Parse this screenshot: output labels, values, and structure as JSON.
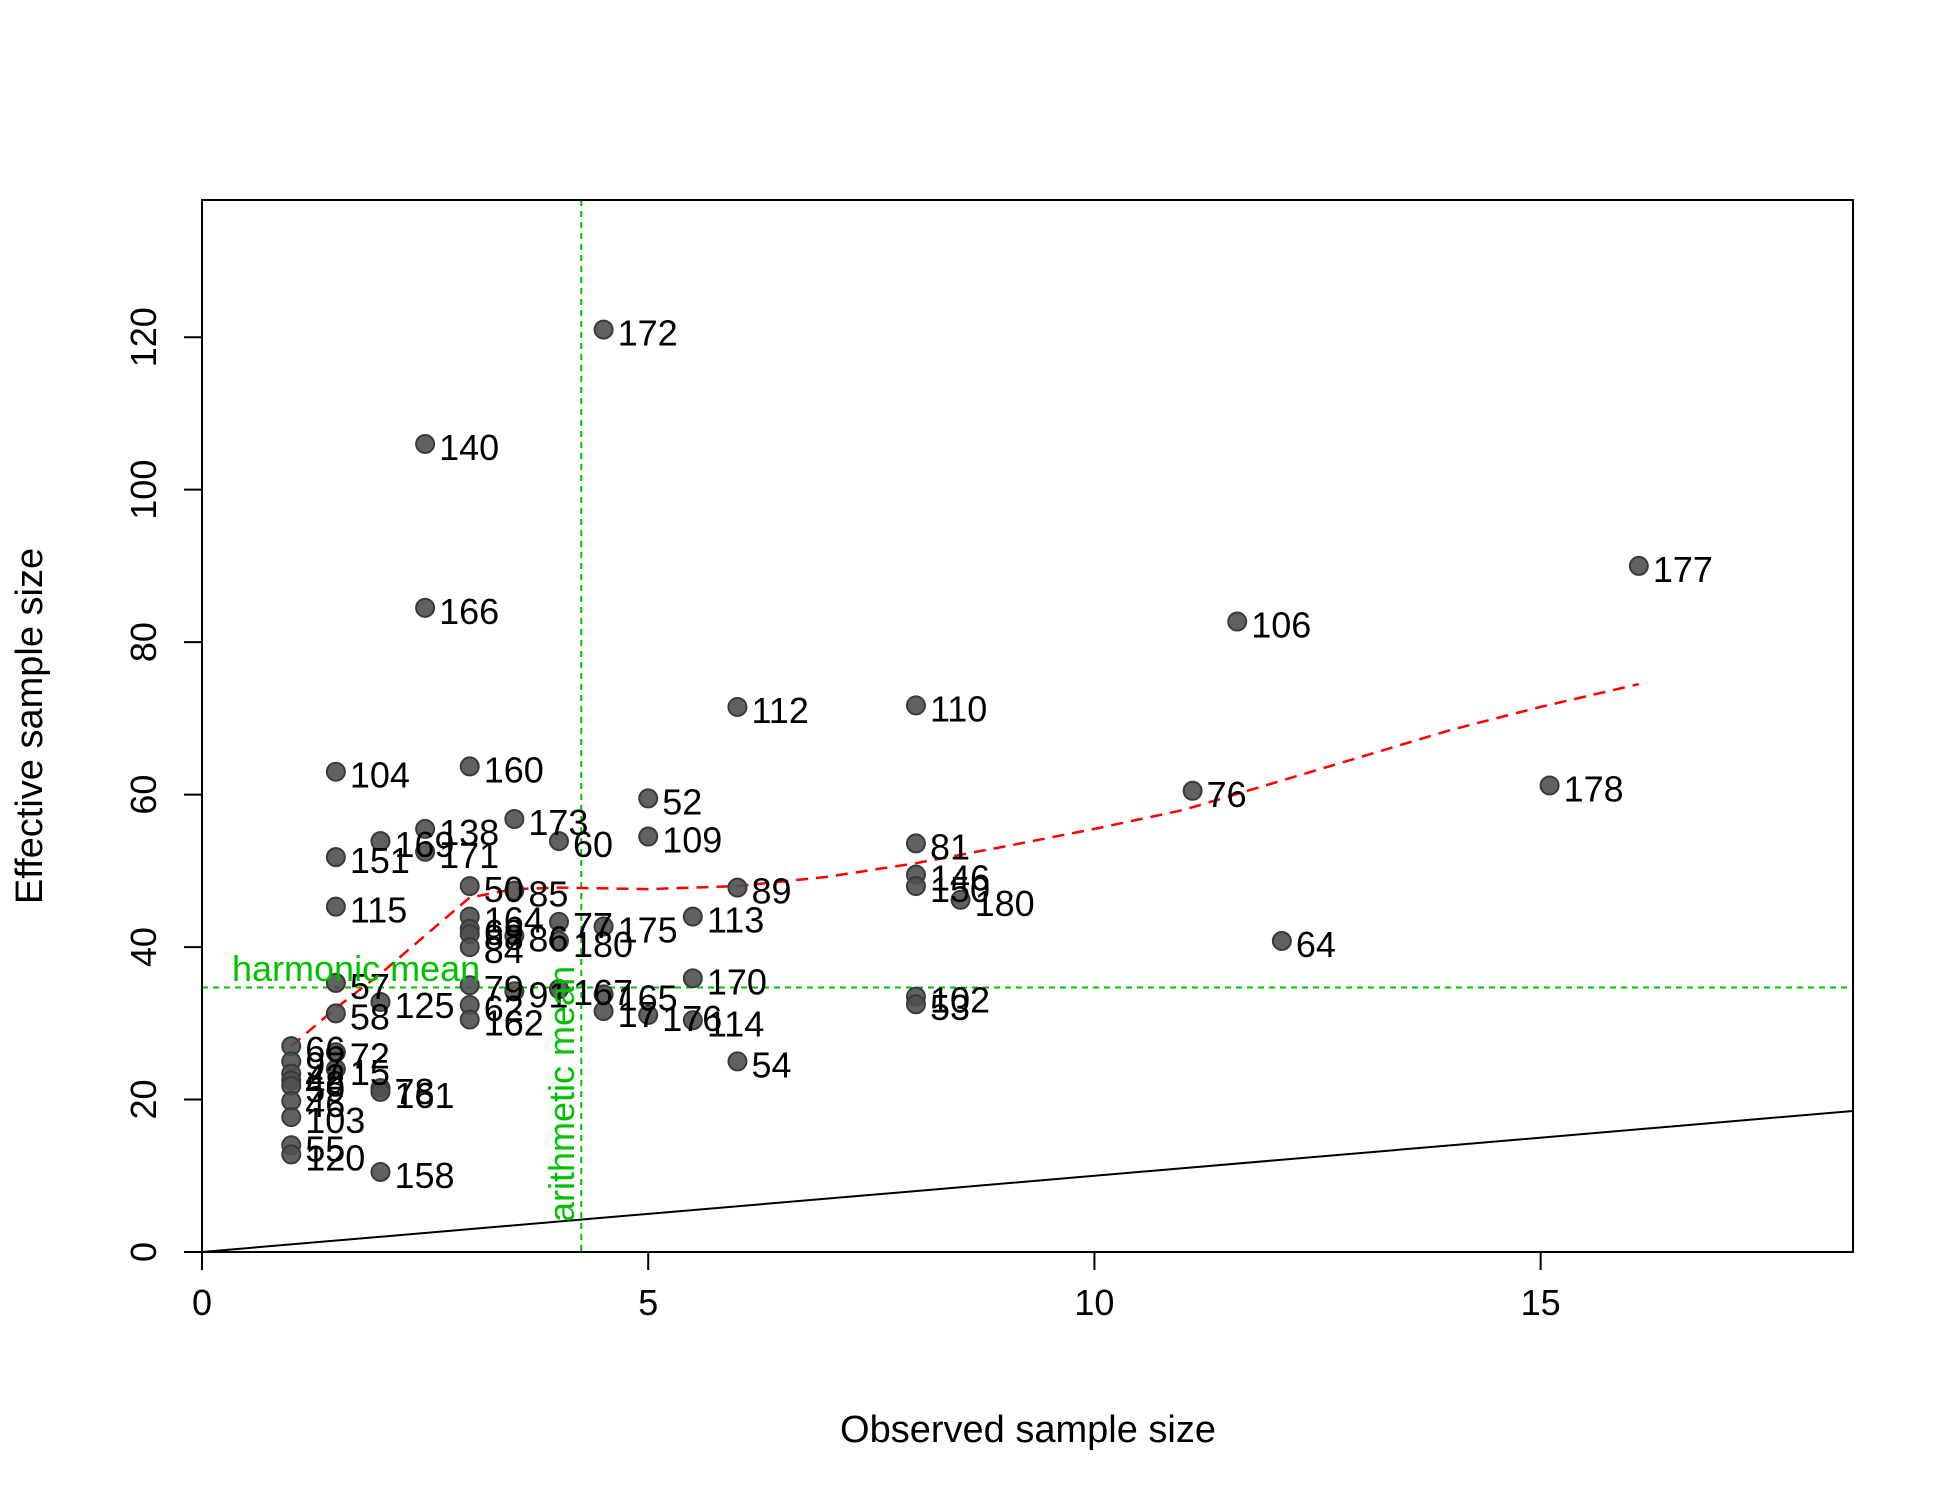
{
  "chart_data": {
    "type": "scatter",
    "title": "",
    "xlabel": "Observed sample size",
    "ylabel": "Effective sample size",
    "xlim": [
      0,
      18.5
    ],
    "ylim": [
      0,
      138
    ],
    "x_ticks": [
      0,
      5,
      10,
      15
    ],
    "y_ticks": [
      0,
      20,
      40,
      60,
      80,
      100,
      120
    ],
    "grid": false,
    "colors": {
      "points": "#3a3a3a",
      "point_fill": "#505050",
      "smooth": "#ff0000",
      "reference": "#00c000",
      "identity": "#000000"
    },
    "points": [
      {
        "label": "172",
        "x": 4.5,
        "y": 121
      },
      {
        "label": "140",
        "x": 2.5,
        "y": 106
      },
      {
        "label": "166",
        "x": 2.5,
        "y": 84.5
      },
      {
        "label": "177",
        "x": 16.1,
        "y": 90
      },
      {
        "label": "106",
        "x": 11.6,
        "y": 82.7
      },
      {
        "label": "112",
        "x": 6,
        "y": 71.5
      },
      {
        "label": "110",
        "x": 8,
        "y": 71.7
      },
      {
        "label": "104",
        "x": 1.5,
        "y": 63
      },
      {
        "label": "160",
        "x": 3,
        "y": 63.7
      },
      {
        "label": "52",
        "x": 5,
        "y": 59.5
      },
      {
        "label": "76",
        "x": 11.1,
        "y": 60.5
      },
      {
        "label": "178",
        "x": 15.1,
        "y": 61.2
      },
      {
        "label": "173",
        "x": 3.5,
        "y": 56.8
      },
      {
        "label": "138",
        "x": 2.5,
        "y": 55.5
      },
      {
        "label": "169",
        "x": 2,
        "y": 53.9
      },
      {
        "label": "171",
        "x": 2.5,
        "y": 52.5
      },
      {
        "label": "60",
        "x": 4,
        "y": 53.9
      },
      {
        "label": "109",
        "x": 5,
        "y": 54.5
      },
      {
        "label": "81",
        "x": 8,
        "y": 53.6
      },
      {
        "label": "151",
        "x": 1.5,
        "y": 51.8
      },
      {
        "label": "146",
        "x": 8,
        "y": 49.5
      },
      {
        "label": "150",
        "x": 8,
        "y": 48
      },
      {
        "label": "89",
        "x": 6,
        "y": 47.8
      },
      {
        "label": "50",
        "x": 3,
        "y": 48
      },
      {
        "label": "85",
        "x": 3.5,
        "y": 47.4
      },
      {
        "label": "180",
        "x": 8.5,
        "y": 46.2
      },
      {
        "label": "115",
        "x": 1.5,
        "y": 45.3
      },
      {
        "label": "113",
        "x": 5.5,
        "y": 44
      },
      {
        "label": "164",
        "x": 3,
        "y": 44
      },
      {
        "label": "77",
        "x": 4,
        "y": 43.3
      },
      {
        "label": "175",
        "x": 4.5,
        "y": 42.7
      },
      {
        "label": "69",
        "x": 3,
        "y": 42.4
      },
      {
        "label": "88",
        "x": 3,
        "y": 41.7
      },
      {
        "label": "86",
        "x": 3.5,
        "y": 41.5
      },
      {
        "label": "180",
        "x": 4,
        "y": 40.8
      },
      {
        "label": "84",
        "x": 3,
        "y": 40
      },
      {
        "label": "64",
        "x": 12.1,
        "y": 40.8
      },
      {
        "label": "170",
        "x": 5.5,
        "y": 35.9
      },
      {
        "label": "57",
        "x": 1.5,
        "y": 35.3
      },
      {
        "label": "79",
        "x": 3,
        "y": 35
      },
      {
        "label": "91",
        "x": 3.5,
        "y": 34.2
      },
      {
        "label": "167",
        "x": 4,
        "y": 34.5
      },
      {
        "label": "165",
        "x": 4.5,
        "y": 33.8
      },
      {
        "label": "102",
        "x": 8,
        "y": 33.5
      },
      {
        "label": "125",
        "x": 2,
        "y": 32.8
      },
      {
        "label": "62",
        "x": 3,
        "y": 32.4
      },
      {
        "label": "53",
        "x": 8,
        "y": 32.5
      },
      {
        "label": "17",
        "x": 4.5,
        "y": 31.6
      },
      {
        "label": "58",
        "x": 1.5,
        "y": 31.3
      },
      {
        "label": "176",
        "x": 5,
        "y": 31.1
      },
      {
        "label": "114",
        "x": 5.5,
        "y": 30.4
      },
      {
        "label": "162",
        "x": 3,
        "y": 30.5
      },
      {
        "label": "66",
        "x": 1,
        "y": 27
      },
      {
        "label": "72",
        "x": 1.5,
        "y": 26.2
      },
      {
        "label": "54",
        "x": 6,
        "y": 25
      },
      {
        "label": "97",
        "x": 1,
        "y": 25
      },
      {
        "label": "15",
        "x": 1.5,
        "y": 24
      },
      {
        "label": "42",
        "x": 1,
        "y": 23.4
      },
      {
        "label": "48",
        "x": 1,
        "y": 22.5
      },
      {
        "label": "59",
        "x": 1,
        "y": 21.8
      },
      {
        "label": "78",
        "x": 2,
        "y": 21.5
      },
      {
        "label": "161",
        "x": 2,
        "y": 21
      },
      {
        "label": "46",
        "x": 1,
        "y": 19.8
      },
      {
        "label": "103",
        "x": 1,
        "y": 17.7
      },
      {
        "label": "55",
        "x": 1,
        "y": 14
      },
      {
        "label": "120",
        "x": 1,
        "y": 12.8
      },
      {
        "label": "158",
        "x": 2,
        "y": 10.5
      }
    ],
    "smooth_line": [
      {
        "x": 1,
        "y": 27
      },
      {
        "x": 1.5,
        "y": 32
      },
      {
        "x": 2,
        "y": 36.5
      },
      {
        "x": 2.5,
        "y": 41.5
      },
      {
        "x": 3,
        "y": 46.5
      },
      {
        "x": 3.5,
        "y": 47.6
      },
      {
        "x": 4,
        "y": 47.8
      },
      {
        "x": 5,
        "y": 47.6
      },
      {
        "x": 6,
        "y": 48
      },
      {
        "x": 7,
        "y": 49.2
      },
      {
        "x": 8,
        "y": 51
      },
      {
        "x": 9,
        "y": 53.2
      },
      {
        "x": 10,
        "y": 55.5
      },
      {
        "x": 11,
        "y": 58
      },
      {
        "x": 12,
        "y": 61.5
      },
      {
        "x": 13,
        "y": 65
      },
      {
        "x": 14,
        "y": 68.5
      },
      {
        "x": 15,
        "y": 71.5
      },
      {
        "x": 16.1,
        "y": 74.5
      }
    ],
    "reference_lines": {
      "harmonic_mean": {
        "y": 34.7,
        "label": "harmonic mean"
      },
      "arithmetic_mean": {
        "x": 4.25,
        "label": "arithmetic mean"
      },
      "identity": {
        "slope": 1
      }
    }
  }
}
